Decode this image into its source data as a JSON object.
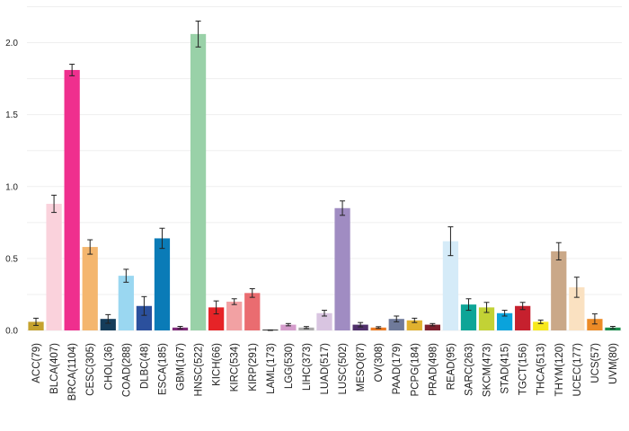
{
  "chart_data": {
    "type": "bar",
    "title": "",
    "xlabel": "",
    "ylabel": "",
    "ylim": [
      0,
      2.25
    ],
    "yticks": [
      0.0,
      0.5,
      1.0,
      1.5,
      2.0
    ],
    "ytick_labels": [
      "0.0",
      "0.5",
      "1.0",
      "1.5",
      "2.0"
    ],
    "grid": true,
    "legend": "none",
    "categories": [
      "ACC(79)",
      "BLCA(407)",
      "BRCA(1104)",
      "CESC(305)",
      "CHOL(36)",
      "COAD(288)",
      "DLBC(48)",
      "ESCA(185)",
      "GBM(167)",
      "HNSC(522)",
      "KICH(66)",
      "KIRC(534)",
      "KIRP(291)",
      "LAML(173)",
      "LGG(530)",
      "LIHC(373)",
      "LUAD(517)",
      "LUSC(502)",
      "MESO(87)",
      "OV(308)",
      "PAAD(179)",
      "PCPG(184)",
      "PRAD(498)",
      "READ(95)",
      "SARC(263)",
      "SKCM(473)",
      "STAD(415)",
      "TGCT(156)",
      "THCA(513)",
      "THYM(120)",
      "UCEC(177)",
      "UCS(57)",
      "UVM(80)"
    ],
    "values": [
      0.06,
      0.88,
      1.81,
      0.58,
      0.08,
      0.38,
      0.17,
      0.64,
      0.02,
      2.06,
      0.16,
      0.2,
      0.26,
      0.0,
      0.04,
      0.02,
      0.12,
      0.85,
      0.04,
      0.02,
      0.08,
      0.07,
      0.04,
      0.62,
      0.18,
      0.16,
      0.12,
      0.17,
      0.06,
      0.55,
      0.3,
      0.08,
      0.02
    ],
    "errors": [
      0.025,
      0.06,
      0.04,
      0.05,
      0.03,
      0.045,
      0.065,
      0.07,
      0.008,
      0.09,
      0.045,
      0.02,
      0.03,
      0.004,
      0.008,
      0.007,
      0.02,
      0.05,
      0.015,
      0.006,
      0.02,
      0.015,
      0.008,
      0.1,
      0.04,
      0.035,
      0.02,
      0.025,
      0.012,
      0.06,
      0.07,
      0.035,
      0.008
    ],
    "colors": [
      "#c5a22e",
      "#fad2dc",
      "#ef2f8e",
      "#f4b66e",
      "#143c5a",
      "#9ad7f1",
      "#2b509d",
      "#0a7bb7",
      "#7e2b79",
      "#99d1a8",
      "#e62327",
      "#f2a1a3",
      "#ea6c70",
      "#090909",
      "#d49ccb",
      "#aaa9aa",
      "#d9c5e1",
      "#a08cc2",
      "#50306b",
      "#ec7a23",
      "#6f7a9a",
      "#e1b12e",
      "#7d1f2e",
      "#d5ebf8",
      "#0ea597",
      "#c2d235",
      "#0aa3dc",
      "#c6202e",
      "#f7e81c",
      "#caa888",
      "#fae1c1",
      "#ec8b27",
      "#1b8e4e"
    ]
  }
}
